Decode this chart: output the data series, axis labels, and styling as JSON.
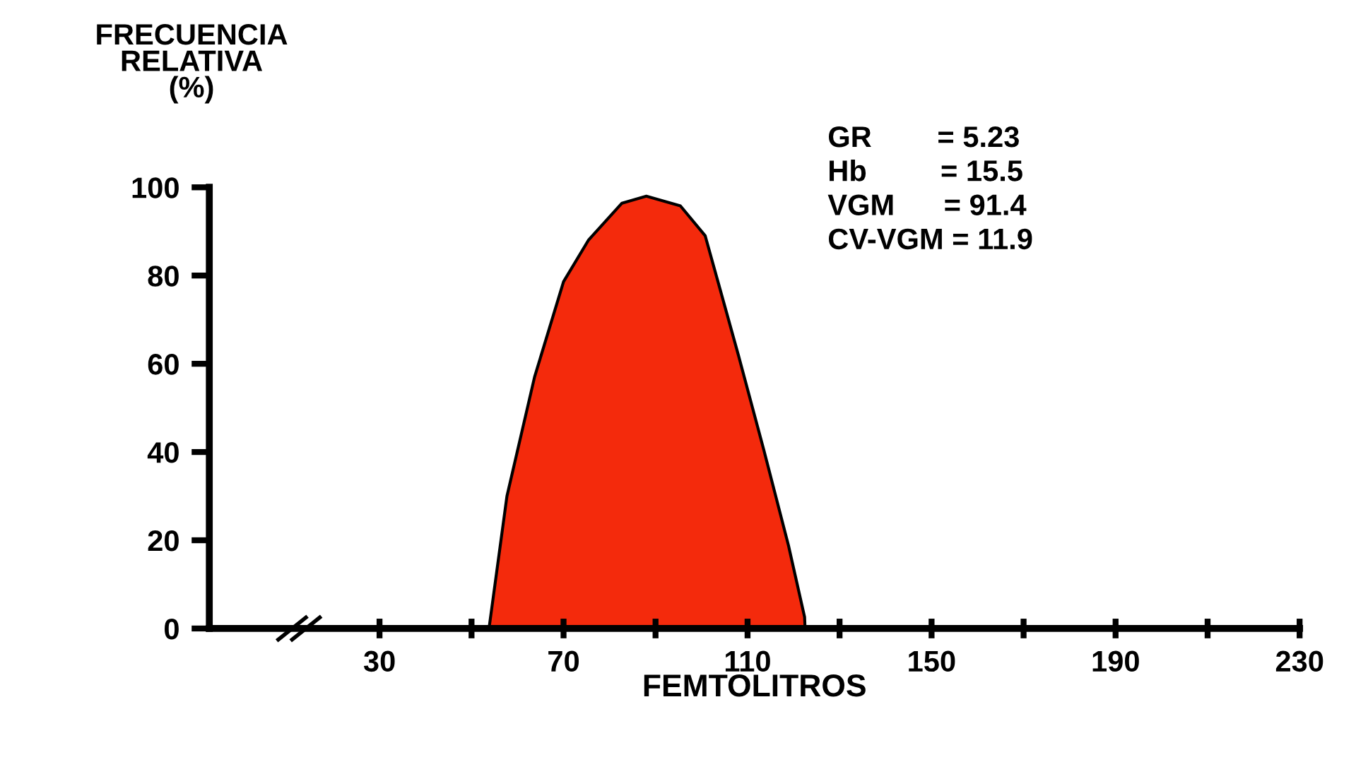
{
  "chart_data": {
    "type": "area",
    "ylabel": "FRECUENCIA\nRELATIVA\n(%)",
    "xlabel": "FEMTOLITROS",
    "x": [
      53.8,
      57.7,
      63.7,
      70,
      75.4,
      82.7,
      88,
      95.4,
      100.8,
      104,
      108,
      113.5,
      118.9,
      122.4,
      122.5
    ],
    "values": [
      0,
      30,
      57,
      78.6,
      88,
      96.4,
      98,
      95.8,
      89,
      77,
      62,
      40.6,
      18.8,
      2.6,
      0
    ],
    "color": "#f42a0c",
    "xlim": [
      -7,
      230
    ],
    "ylim": [
      0,
      100
    ],
    "xticks": [
      30,
      {
        "value": 50,
        "label": null
      },
      70,
      {
        "value": 90,
        "label": null
      },
      110,
      {
        "value": 130,
        "label": null
      },
      150,
      {
        "value": 170,
        "label": null
      },
      190,
      {
        "value": 210,
        "label": null
      },
      230
    ],
    "yticks": [
      0,
      20,
      40,
      60,
      80,
      100
    ],
    "annotations": [
      "GR        = 5.23",
      "Hb         = 15.5",
      "VGM      = 91.4",
      "CV-VGM = 11.9"
    ],
    "grid": false,
    "legend": false
  }
}
